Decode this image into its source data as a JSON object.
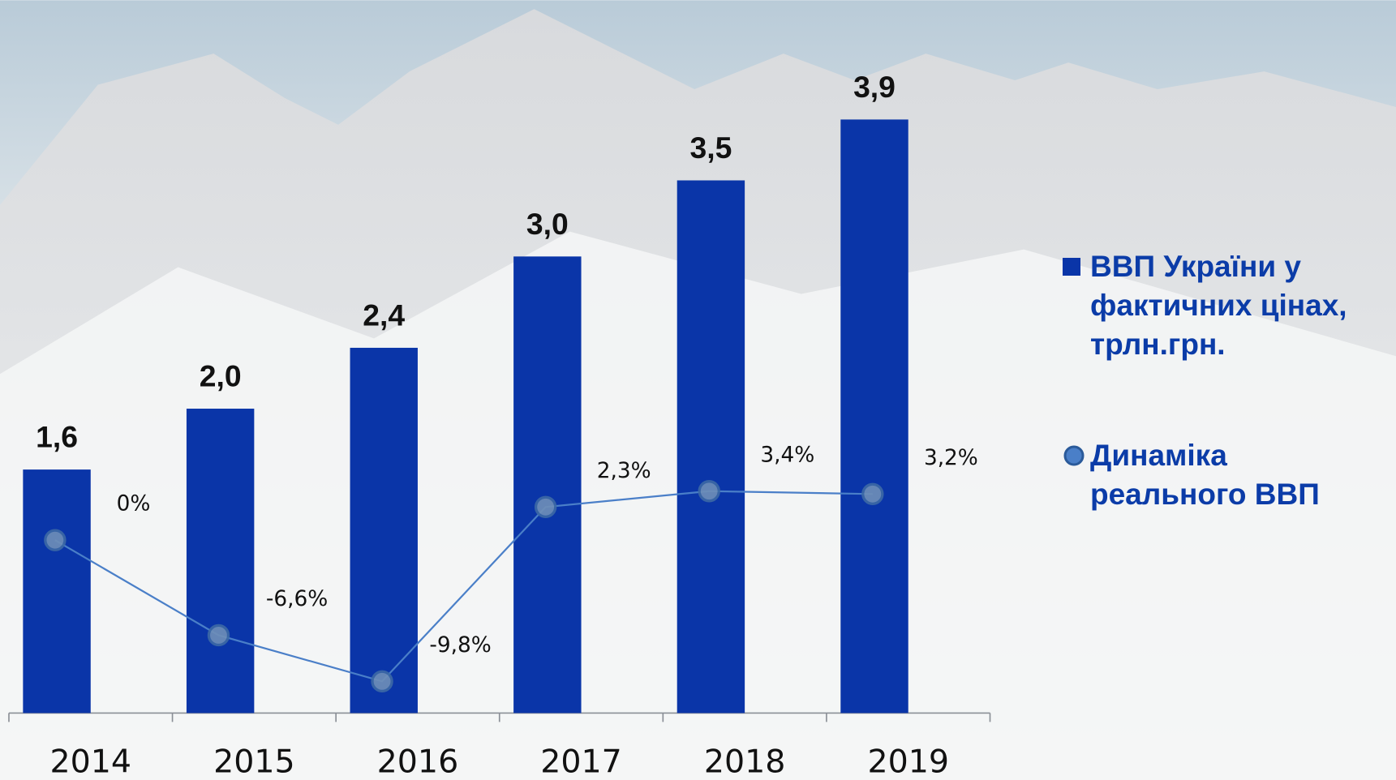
{
  "chart_data": {
    "type": "bar",
    "categories": [
      "2014",
      "2015",
      "2016",
      "2017",
      "2018",
      "2019"
    ],
    "ylim": [
      0,
      4.45
    ],
    "y2lim": [
      -12,
      35
    ],
    "series": [
      {
        "name": "ВВП України у фактичних цінах, трлн.грн.",
        "color": "#0a35a8",
        "values": [
          1.6,
          2.0,
          2.4,
          3.0,
          3.5,
          3.9
        ],
        "value_labels": [
          "1,6",
          "2,0",
          "2,4",
          "3,0",
          "3,5",
          "3,9"
        ]
      },
      {
        "name": "Динаміка реального ВВП",
        "type": "line",
        "axis": "y2",
        "color": "#4a7fc8",
        "values": [
          0,
          -6.6,
          -9.8,
          2.3,
          3.4,
          3.2
        ],
        "value_labels": [
          "0%",
          "-6,6%",
          "-9,8%",
          "2,3%",
          "3,4%",
          "3,2%"
        ]
      }
    ]
  }
}
